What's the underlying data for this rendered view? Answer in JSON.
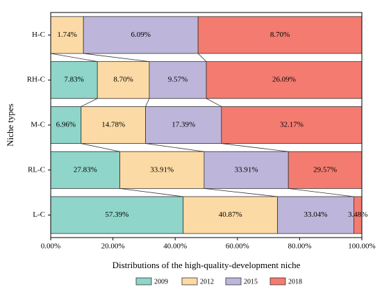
{
  "chart_data": {
    "type": "bar",
    "orientation": "horizontal",
    "stacked": "percent",
    "x_label": "Distributions of the high-quality-development niche",
    "y_label": "Niche types",
    "categories": [
      "H-C",
      "RH-C",
      "M-C",
      "RL-C",
      "L-C"
    ],
    "series": [
      {
        "name": "2009",
        "color": "#8fd5c9",
        "values": [
          null,
          7.83,
          6.96,
          27.83,
          57.39
        ],
        "value_labels": [
          null,
          "7.83%",
          "6.96%",
          "27.83%",
          "57.39%"
        ]
      },
      {
        "name": "2012",
        "color": "#fcdaa5",
        "values": [
          1.74,
          8.7,
          14.78,
          33.91,
          40.87
        ],
        "value_labels": [
          "1.74%",
          "8.70%",
          "14.78%",
          "33.91%",
          "40.87%"
        ]
      },
      {
        "name": "2015",
        "color": "#bdb6da",
        "values": [
          6.09,
          9.57,
          17.39,
          33.91,
          33.04
        ],
        "value_labels": [
          "6.09%",
          "9.57%",
          "17.39%",
          "33.91%",
          "33.04%"
        ]
      },
      {
        "name": "2018",
        "color": "#f47b70",
        "values": [
          8.7,
          26.09,
          32.17,
          29.57,
          3.48
        ],
        "value_labels": [
          "8.70%",
          "26.09%",
          "32.17%",
          "29.57%",
          "3.48%"
        ]
      }
    ],
    "xlim": [
      0,
      100
    ],
    "xticks": [
      {
        "value": 0,
        "label": "0.00%"
      },
      {
        "value": 20,
        "label": "20.00%"
      },
      {
        "value": 40,
        "label": "40.00%"
      },
      {
        "value": 60,
        "label": "60.00%"
      },
      {
        "value": 80,
        "label": "80.00%"
      },
      {
        "value": 100,
        "label": "100.00%"
      }
    ],
    "legend": "bottom"
  }
}
